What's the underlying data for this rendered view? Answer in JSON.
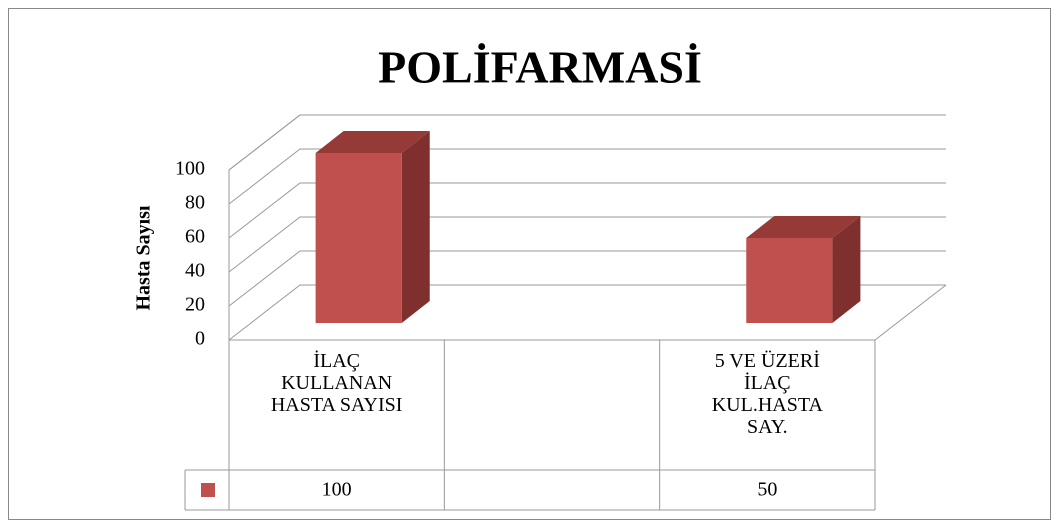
{
  "chart_data": {
    "type": "bar3d",
    "title": "POLİFARMASİ",
    "y_label": "Hasta Sayısı",
    "categories": [
      "İLAÇ KULLANAN HASTA  SAYISI",
      null,
      "5  VE ÜZERİ İLAÇ KUL.HASTA SAY."
    ],
    "values": [
      100,
      null,
      50
    ],
    "color": "#c0504d",
    "ylim": [
      0,
      100
    ],
    "yticks": [
      0,
      20,
      40,
      60,
      80,
      100
    ],
    "grid": true
  }
}
